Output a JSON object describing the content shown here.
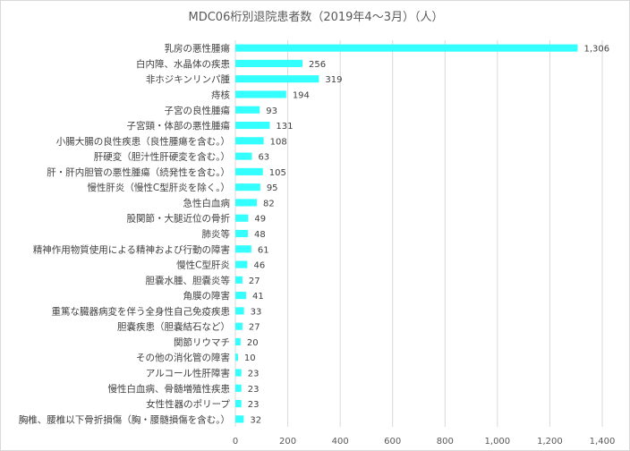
{
  "chart_data": {
    "type": "bar",
    "orientation": "horizontal",
    "title": "MDC06桁別退院患者数（2019年4～3月）（人）",
    "xlabel": "",
    "ylabel": "",
    "xlim": [
      0,
      1400
    ],
    "ticks": [
      0,
      200,
      400,
      600,
      800,
      1000,
      1200,
      1400
    ],
    "tick_labels": [
      "0",
      "200",
      "400",
      "600",
      "800",
      "1,000",
      "1,200",
      "1,400"
    ],
    "grid": true,
    "legend": "none",
    "bar_color": "#33ffff",
    "categories": [
      "乳房の悪性腫瘍",
      "白内障、水晶体の疾患",
      "非ホジキンリンパ腫",
      "痔核",
      "子宮の良性腫瘍",
      "子宮頸・体部の悪性腫瘍",
      "小腸大腸の良性疾患（良性腫瘍を含む。）",
      "肝硬変（胆汁性肝硬変を含む。）",
      "肝・肝内胆管の悪性腫瘍（続発性を含む。）",
      "慢性肝炎（慢性C型肝炎を除く。）",
      "急性白血病",
      "股関節・大腿近位の骨折",
      "肺炎等",
      "精神作用物質使用による精神および行動の障害",
      "慢性C型肝炎",
      "胆嚢水腫、胆嚢炎等",
      "角膜の障害",
      "重篤な臓器病変を伴う全身性自己免疫疾患",
      "胆嚢疾患（胆嚢結石など）",
      "関節リウマチ",
      "その他の消化管の障害",
      "アルコール性肝障害",
      "慢性白血病、骨髄増殖性疾患",
      "女性性器のポリープ",
      "胸椎、腰椎以下骨折損傷（胸・腰髄損傷を含む。）"
    ],
    "values": [
      1306,
      256,
      319,
      194,
      93,
      131,
      108,
      63,
      105,
      95,
      82,
      49,
      48,
      61,
      46,
      27,
      41,
      33,
      27,
      20,
      10,
      23,
      23,
      23,
      32
    ],
    "value_labels": [
      "1,306",
      "256",
      "319",
      "194",
      "93",
      "131",
      "108",
      "63",
      "105",
      "95",
      "82",
      "49",
      "48",
      "61",
      "46",
      "27",
      "41",
      "33",
      "27",
      "20",
      "10",
      "23",
      "23",
      "23",
      "32"
    ]
  }
}
